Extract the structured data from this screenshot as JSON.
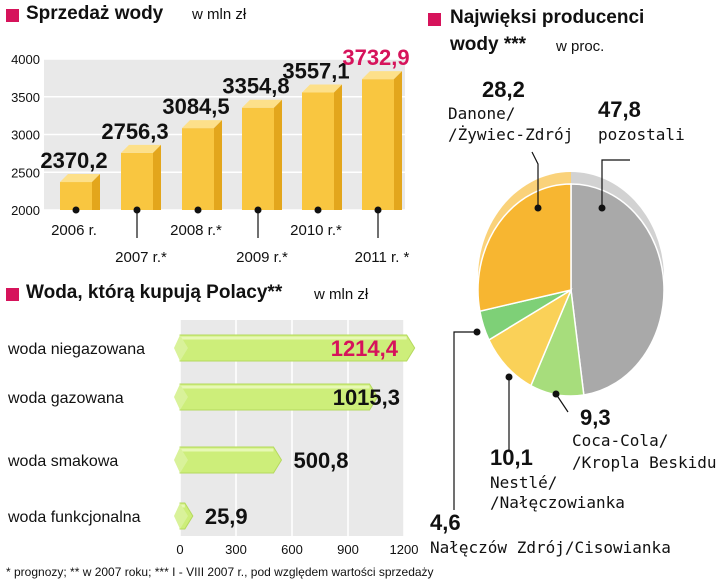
{
  "sales_section": {
    "title": "Sprzedaż wody",
    "unit": "w mln zł"
  },
  "purchase_section": {
    "title": "Woda, którą kupują Polacy**",
    "unit": "w mln zł"
  },
  "producers_section": {
    "title_line1": "Najwięksi producenci",
    "title_line2": "wody ***",
    "unit": "w proc."
  },
  "footnote": "* prognozy; ** w 2007 roku; *** I - VIII 2007 r., pod względem wartości sprzedaży",
  "colors": {
    "accent": "#d6135b",
    "bar_yellow": "#f9c640",
    "bar_green": "#cdee7a",
    "pie_gray": "#a9a9a9",
    "pie_orange": "#f7b631",
    "pie_green": "#a7dd7c",
    "pie_lightyellow": "#fad158",
    "pie_brightgreen": "#7ed077"
  },
  "chart_data": [
    {
      "type": "bar",
      "title": "Sprzedaż wody",
      "ylabel": "w mln zł",
      "categories": [
        "2006 r.",
        "2007 r.*",
        "2008 r.*",
        "2009 r.*",
        "2010 r.*",
        "2011 r. *"
      ],
      "values": [
        2370.2,
        2756.3,
        3084.5,
        3354.8,
        3557.1,
        3732.9
      ],
      "value_labels": [
        "2370,2",
        "2756,3",
        "3084,5",
        "3354,8",
        "3557,1",
        "3732,9"
      ],
      "highlight_index": 5,
      "ylim": [
        2000,
        4000
      ],
      "yticks": [
        "2000",
        "2500",
        "3000",
        "3500",
        "4000"
      ],
      "ytick_values": [
        2000,
        2500,
        3000,
        3500,
        4000
      ],
      "grid": true
    },
    {
      "type": "bar",
      "orientation": "horizontal",
      "title": "Woda, którą kupują Polacy**",
      "xlabel": "w mln zł",
      "categories": [
        "woda niegazowana",
        "woda gazowana",
        "woda smakowa",
        "woda funkcjonalna"
      ],
      "values": [
        1214.4,
        1015.3,
        500.8,
        25.9
      ],
      "value_labels": [
        "1214,4",
        "1015,3",
        "500,8",
        "25,9"
      ],
      "highlight_index": 0,
      "xlim": [
        0,
        1200
      ],
      "xticks": [
        "0",
        "300",
        "600",
        "900",
        "1200"
      ],
      "xtick_values": [
        0,
        300,
        600,
        900,
        1200
      ],
      "grid": true
    },
    {
      "type": "pie",
      "title": "Najwięksi producenci wody ***",
      "unit": "w proc.",
      "slices": [
        {
          "label_line1": "pozostali",
          "label_line2": "",
          "value": 47.8,
          "value_label": "47,8",
          "color": "#a9a9a9",
          "side": "#d2d2d2"
        },
        {
          "label_line1": "Coca-Cola/",
          "label_line2": "/Kropla Beskidu",
          "value": 9.3,
          "value_label": "9,3",
          "color": "#a7dd7c",
          "side": "#c9eca8"
        },
        {
          "label_line1": "Nestlé/",
          "label_line2": "/Nałęczowianka",
          "value": 10.1,
          "value_label": "10,1",
          "color": "#fad158",
          "side": "#fbe08f"
        },
        {
          "label_line1": "Nałęczów Zdrój/Cisowianka",
          "label_line2": "",
          "value": 4.6,
          "value_label": "4,6",
          "color": "#7ed077",
          "side": "#a8e2a2"
        },
        {
          "label_line1": "Danone/",
          "label_line2": "/Żywiec-Zdrój",
          "value": 28.2,
          "value_label": "28,2",
          "color": "#f7b631",
          "side": "#fad27a"
        }
      ]
    }
  ]
}
